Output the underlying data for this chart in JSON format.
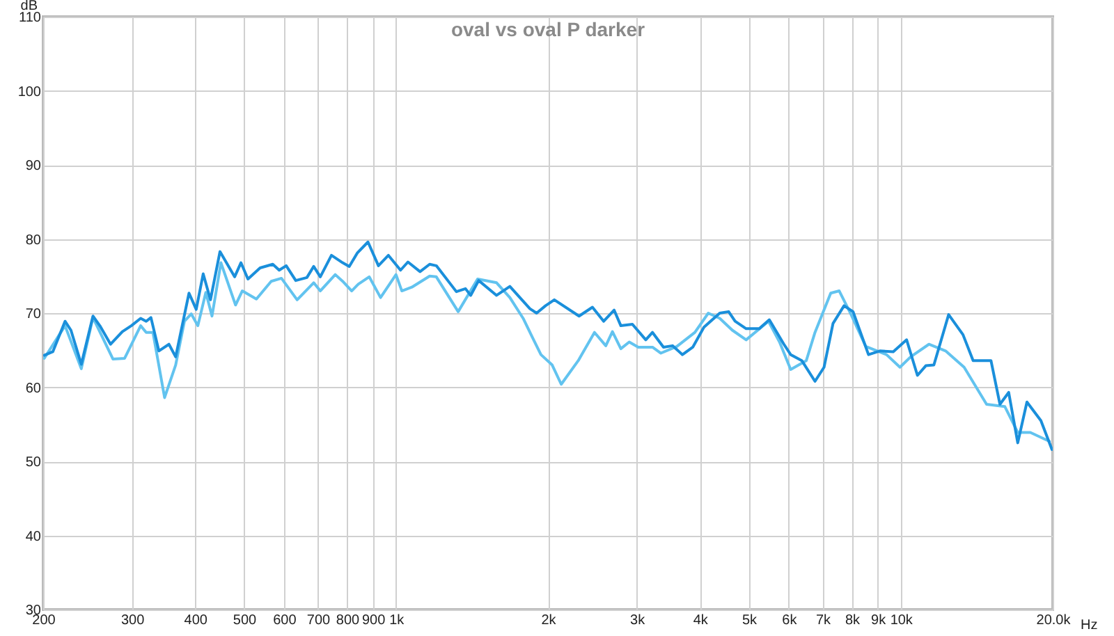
{
  "chart_data": {
    "type": "line",
    "title": "oval vs oval P darker",
    "xlabel": "Hz",
    "ylabel": "dB",
    "log": "x",
    "grid": true,
    "line_style": "solid",
    "xlim": [
      200,
      20000
    ],
    "ylim": [
      30,
      110
    ],
    "xticks": [
      200,
      300,
      400,
      500,
      600,
      700,
      800,
      900,
      {
        "value": 1000,
        "label": "1k"
      },
      {
        "value": 2000,
        "label": "2k"
      },
      {
        "value": 3000,
        "label": "3k"
      },
      {
        "value": 4000,
        "label": "4k"
      },
      {
        "value": 5000,
        "label": "5k"
      },
      {
        "value": 6000,
        "label": "6k"
      },
      {
        "value": 7000,
        "label": "7k"
      },
      {
        "value": 8000,
        "label": "8k"
      },
      {
        "value": 9000,
        "label": "9k"
      },
      {
        "value": 10000,
        "label": "10k"
      },
      {
        "value": 20000,
        "label": "20.0k"
      }
    ],
    "yticks": [
      30,
      40,
      50,
      60,
      70,
      80,
      90,
      100,
      110
    ],
    "series": [
      {
        "color": "#62c3ef",
        "x": [
          201,
          221,
          238,
          251,
          275,
          290,
          312,
          320,
          330,
          348,
          366,
          381,
          393,
          405,
          420,
          432,
          450,
          481,
          496,
          529,
          566,
          593,
          637,
          687,
          708,
          758,
          784,
          817,
          842,
          885,
          932,
          1000,
          1027,
          1075,
          1166,
          1202,
          1328,
          1451,
          1582,
          1681,
          1786,
          1861,
          1937,
          2039,
          2125,
          2297,
          2473,
          2604,
          2684,
          2789,
          2898,
          3020,
          3222,
          3348,
          3601,
          3910,
          4156,
          4379,
          4637,
          4939,
          5470,
          5752,
          6052,
          6499,
          6762,
          7265,
          7552,
          7961,
          8526,
          9370,
          9963,
          10460,
          11370,
          12270,
          13350,
          14790,
          16070,
          17050,
          18060,
          19700
        ],
        "values": [
          63.9,
          68.3,
          62.5,
          69.4,
          63.8,
          63.9,
          68.3,
          67.4,
          67.4,
          58.6,
          63,
          68.9,
          69.9,
          68.3,
          72.8,
          69.6,
          76.8,
          71.1,
          73,
          71.9,
          74.3,
          74.7,
          71.8,
          74.1,
          73,
          75.2,
          74.3,
          73,
          73.9,
          74.9,
          72.1,
          75.2,
          73,
          73.5,
          75,
          74.9,
          70.2,
          74.6,
          74.1,
          72.1,
          69.3,
          66.8,
          64.4,
          63,
          60.4,
          63.6,
          67.4,
          65.6,
          67.5,
          65.2,
          66.1,
          65.4,
          65.4,
          64.6,
          65.5,
          67.4,
          70,
          69.3,
          67.7,
          66.4,
          68.9,
          66.1,
          62.4,
          63.6,
          67.4,
          72.7,
          73,
          69.9,
          65.5,
          64.4,
          62.7,
          64.1,
          65.8,
          64.9,
          62.7,
          57.7,
          57.4,
          53.9,
          53.9,
          52.7
        ]
      },
      {
        "color": "#1a8fdb",
        "x": [
          201,
          209,
          221,
          227,
          238,
          251,
          259,
          272,
          287,
          299,
          312,
          320,
          327,
          339,
          355,
          366,
          389,
          402,
          415,
          429,
          448,
          479,
          493,
          509,
          538,
          570,
          587,
          606,
          633,
          666,
          687,
          708,
          745,
          784,
          808,
          838,
          880,
          923,
          966,
          1021,
          1056,
          1116,
          1166,
          1202,
          1317,
          1373,
          1406,
          1458,
          1582,
          1681,
          1842,
          1899,
          1978,
          2059,
          2305,
          2450,
          2579,
          2705,
          2789,
          2940,
          3125,
          3222,
          3388,
          3530,
          3694,
          3872,
          4074,
          4379,
          4560,
          4697,
          4939,
          5244,
          5490,
          5868,
          6052,
          6366,
          6762,
          7047,
          7341,
          7720,
          8044,
          8631,
          9088,
          9663,
          10270,
          10790,
          11210,
          11630,
          12440,
          13280,
          13910,
          15090,
          15720,
          16360,
          17050,
          17780,
          18950,
          19930
        ],
        "values": [
          64.3,
          64.8,
          68.9,
          67.7,
          63.1,
          69.6,
          68.3,
          65.8,
          67.5,
          68.3,
          69.3,
          68.9,
          69.4,
          64.9,
          65.8,
          64.1,
          72.7,
          70.5,
          75.3,
          71.8,
          78.3,
          74.9,
          76.8,
          74.6,
          76.1,
          76.6,
          75.8,
          76.4,
          74.4,
          74.8,
          76.3,
          74.9,
          77.8,
          76.8,
          76.3,
          78.1,
          79.6,
          76.4,
          77.8,
          75.8,
          76.9,
          75.6,
          76.6,
          76.4,
          72.9,
          73.3,
          72.4,
          74.4,
          72.4,
          73.6,
          70.6,
          70,
          71,
          71.8,
          69.6,
          70.8,
          68.9,
          70.4,
          68.3,
          68.5,
          66.4,
          67.4,
          65.4,
          65.6,
          64.4,
          65.4,
          68.1,
          70,
          70.2,
          68.9,
          67.9,
          67.9,
          69.1,
          65.8,
          64.4,
          63.6,
          60.8,
          62.7,
          68.6,
          71,
          70.2,
          64.4,
          64.9,
          64.8,
          66.4,
          61.6,
          62.9,
          63,
          69.8,
          67.1,
          63.6,
          63.6,
          57.7,
          59.3,
          52.5,
          58,
          55.5,
          51.6
        ]
      }
    ]
  }
}
